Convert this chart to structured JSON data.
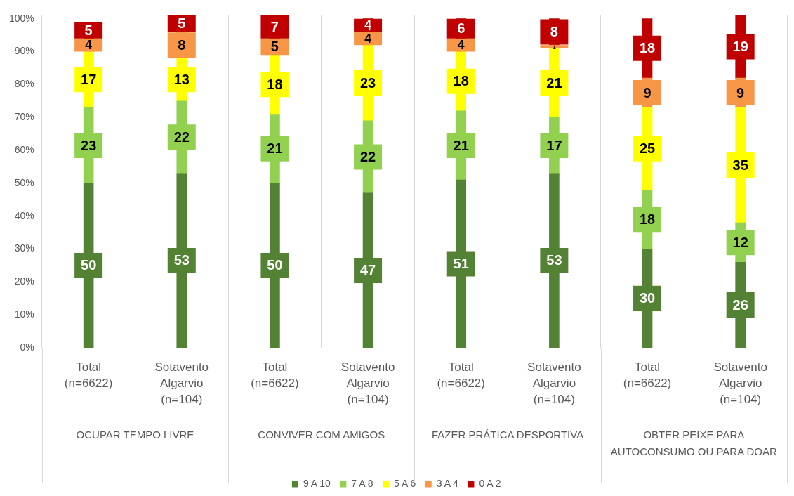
{
  "chart_data": {
    "type": "bar",
    "stacked": true,
    "data_labels": true,
    "grid": "x",
    "legend": "bottom",
    "categories": [
      "Total (n=6622)",
      "Sotavento Algarvio (n=104)",
      "Total (n=6622)",
      "Sotavento Algarvio (n=104)",
      "Total (n=6622)",
      "Sotavento Algarvio (n=104)",
      "Total (n=6622)",
      "Sotavento Algarvio (n=104)"
    ],
    "series": [
      {
        "name": "9 A 10",
        "color": "#548235",
        "values": [
          50,
          53,
          50,
          47,
          51,
          53,
          30,
          26
        ]
      },
      {
        "name": "7 A 8",
        "color": "#92d050",
        "values": [
          23,
          22,
          21,
          22,
          21,
          17,
          18,
          12
        ]
      },
      {
        "name": "5 A 6",
        "color": "#ffff00",
        "values": [
          17,
          13,
          18,
          23,
          18,
          21,
          25,
          35
        ]
      },
      {
        "name": "3 A 4",
        "color": "#f79646",
        "values": [
          4,
          8,
          5,
          4,
          4,
          1,
          9,
          9
        ]
      },
      {
        "name": "0 A 2",
        "color": "#c00000",
        "values": [
          5,
          5,
          7,
          4,
          6,
          8,
          18,
          19
        ]
      }
    ],
    "ylim": [
      0,
      101
    ],
    "yticks": [
      {
        "value": 0,
        "label": "0%"
      },
      {
        "value": 10,
        "label": "10%"
      },
      {
        "value": 20,
        "label": "20%"
      },
      {
        "value": 30,
        "label": "30%"
      },
      {
        "value": 40,
        "label": "40%"
      },
      {
        "value": 50,
        "label": "50%"
      },
      {
        "value": 60,
        "label": "60%"
      },
      {
        "value": 70,
        "label": "70%"
      },
      {
        "value": 80,
        "label": "80%"
      },
      {
        "value": 90,
        "label": "90%"
      },
      {
        "value": 100,
        "label": "100%"
      }
    ],
    "annotations": [
      "OCUPAR TEMPO LIVRE",
      "CONVIVER COM AMIGOS",
      "FAZER PRÁTICA DESPORTIVA",
      "OBTER PEIXE PARA AUTOCONSUMO OU PARA DOAR"
    ]
  }
}
